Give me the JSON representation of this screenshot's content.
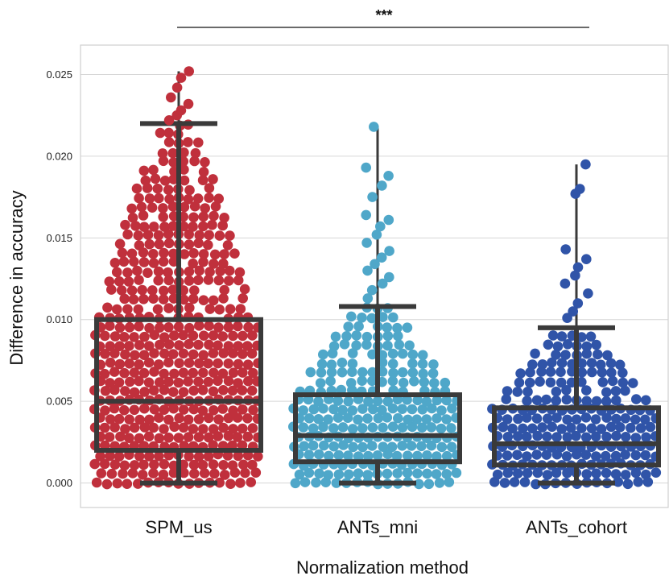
{
  "chart_data": {
    "type": "box_swarm",
    "title": "",
    "xlabel": "Normalization method",
    "ylabel": "Difference in accuracy",
    "ylim": [
      -0.0015,
      0.0268
    ],
    "yticks": [
      0.0,
      0.005,
      0.01,
      0.015,
      0.02,
      0.025
    ],
    "ytick_labels": [
      "0.000",
      "0.005",
      "0.010",
      "0.015",
      "0.020",
      "0.025"
    ],
    "grid": "horizontal",
    "significance": {
      "label": "***",
      "from": "SPM_us",
      "to": "ANTs_cohort"
    },
    "categories": [
      "SPM_us",
      "ANTs_mni",
      "ANTs_cohort"
    ],
    "series": [
      {
        "category": "SPM_us",
        "color": "#C0303C",
        "box": {
          "whisker_low": 0.0,
          "q1": 0.002,
          "median": 0.005,
          "q3": 0.01,
          "whisker_high": 0.022
        },
        "outliers": [
          0.0222,
          0.0225,
          0.0228,
          0.0232,
          0.0236,
          0.0242,
          0.0248,
          0.0252
        ]
      },
      {
        "category": "ANTs_mni",
        "color": "#4FA7C9",
        "box": {
          "whisker_low": 0.0,
          "q1": 0.0013,
          "median": 0.0029,
          "q3": 0.0054,
          "whisker_high": 0.0108
        },
        "outliers": [
          0.0113,
          0.0118,
          0.0122,
          0.0126,
          0.013,
          0.0134,
          0.0138,
          0.0142,
          0.0147,
          0.0152,
          0.0157,
          0.0161,
          0.0164,
          0.0175,
          0.0182,
          0.0188,
          0.0193,
          0.0218
        ]
      },
      {
        "category": "ANTs_cohort",
        "color": "#3054A8",
        "box": {
          "whisker_low": 0.0,
          "q1": 0.0011,
          "median": 0.0024,
          "q3": 0.0046,
          "whisker_high": 0.0095
        },
        "outliers": [
          0.0101,
          0.0105,
          0.011,
          0.0116,
          0.0122,
          0.0127,
          0.0132,
          0.0137,
          0.0143,
          0.0177,
          0.018,
          0.0195
        ]
      }
    ]
  }
}
